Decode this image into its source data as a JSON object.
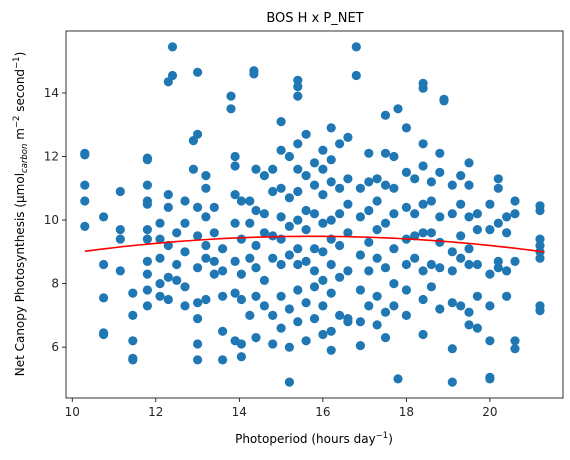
{
  "chart_data": {
    "type": "scatter",
    "title": "BOS H x P_NET",
    "xlabel": {
      "main": "Photoperiod (hours day",
      "sup": "−1",
      "close": ")"
    },
    "ylabel": {
      "p1": "Net Canopy Photosynthesis (μmol",
      "sub": "carbon",
      "p2": " m",
      "sup1": "−2",
      "p3": " second",
      "sup2": "−1",
      "p4": ")"
    },
    "xlim": [
      9.85,
      21.75
    ],
    "ylim": [
      4.4,
      15.95
    ],
    "xticks": [
      10,
      12,
      14,
      16,
      18,
      20
    ],
    "yticks": [
      6,
      8,
      10,
      12,
      14
    ],
    "grid": false,
    "point_color": "#1f77b4",
    "fit_color": "#ff0000",
    "fit": {
      "x_start": 10.3,
      "x_end": 21.3,
      "a": -0.0159,
      "b": 0.5005,
      "c": 5.55
    },
    "points": [
      [
        10.3,
        12.1
      ],
      [
        10.3,
        11.1
      ],
      [
        10.3,
        10.6
      ],
      [
        10.3,
        9.8
      ],
      [
        10.3,
        12.05
      ],
      [
        10.75,
        10.1
      ],
      [
        10.75,
        8.6
      ],
      [
        10.75,
        7.55
      ],
      [
        10.75,
        6.45
      ],
      [
        10.75,
        6.4
      ],
      [
        11.15,
        10.9
      ],
      [
        11.15,
        9.7
      ],
      [
        11.15,
        9.4
      ],
      [
        11.15,
        8.4
      ],
      [
        11.45,
        7.7
      ],
      [
        11.45,
        7.0
      ],
      [
        11.45,
        6.2
      ],
      [
        11.45,
        5.65
      ],
      [
        11.45,
        5.6
      ],
      [
        11.8,
        11.95
      ],
      [
        11.8,
        11.1
      ],
      [
        11.8,
        10.6
      ],
      [
        11.8,
        10.5
      ],
      [
        11.8,
        9.7
      ],
      [
        11.8,
        9.4
      ],
      [
        11.8,
        8.7
      ],
      [
        11.8,
        8.3
      ],
      [
        11.8,
        7.8
      ],
      [
        11.8,
        7.3
      ],
      [
        11.8,
        11.9
      ],
      [
        12.1,
        9.9
      ],
      [
        12.1,
        9.4
      ],
      [
        12.1,
        8.8
      ],
      [
        12.1,
        8.0
      ],
      [
        12.1,
        7.6
      ],
      [
        12.3,
        10.8
      ],
      [
        12.3,
        10.4
      ],
      [
        12.3,
        9.2
      ],
      [
        12.3,
        8.2
      ],
      [
        12.3,
        7.5
      ],
      [
        12.3,
        14.35
      ],
      [
        12.4,
        15.45
      ],
      [
        12.4,
        14.55
      ],
      [
        12.5,
        9.6
      ],
      [
        12.5,
        8.6
      ],
      [
        12.5,
        8.1
      ],
      [
        12.7,
        10.6
      ],
      [
        12.7,
        9.9
      ],
      [
        12.7,
        9.0
      ],
      [
        12.7,
        7.9
      ],
      [
        12.7,
        7.3
      ],
      [
        12.9,
        12.5
      ],
      [
        12.9,
        11.6
      ],
      [
        13.0,
        12.7
      ],
      [
        13.0,
        14.65
      ],
      [
        13.0,
        10.4
      ],
      [
        13.0,
        9.5
      ],
      [
        13.0,
        8.5
      ],
      [
        13.0,
        7.4
      ],
      [
        13.0,
        6.9
      ],
      [
        13.0,
        6.1
      ],
      [
        13.0,
        5.6
      ],
      [
        13.2,
        11.4
      ],
      [
        13.2,
        11.0
      ],
      [
        13.2,
        10.1
      ],
      [
        13.2,
        9.2
      ],
      [
        13.2,
        8.8
      ],
      [
        13.2,
        7.5
      ],
      [
        13.4,
        10.4
      ],
      [
        13.4,
        9.6
      ],
      [
        13.4,
        8.7
      ],
      [
        13.4,
        8.3
      ],
      [
        13.6,
        9.1
      ],
      [
        13.6,
        8.4
      ],
      [
        13.6,
        7.6
      ],
      [
        13.6,
        6.5
      ],
      [
        13.6,
        5.6
      ],
      [
        13.8,
        13.9
      ],
      [
        13.8,
        13.5
      ],
      [
        13.9,
        12.0
      ],
      [
        13.9,
        11.7
      ],
      [
        13.9,
        10.8
      ],
      [
        13.9,
        9.9
      ],
      [
        13.9,
        8.7
      ],
      [
        13.9,
        7.7
      ],
      [
        13.9,
        6.2
      ],
      [
        14.05,
        10.6
      ],
      [
        14.05,
        9.4
      ],
      [
        14.05,
        8.3
      ],
      [
        14.05,
        7.5
      ],
      [
        14.05,
        6.1
      ],
      [
        14.05,
        5.7
      ],
      [
        14.25,
        10.6
      ],
      [
        14.25,
        9.9
      ],
      [
        14.25,
        8.8
      ],
      [
        14.25,
        7.0
      ],
      [
        14.35,
        14.7
      ],
      [
        14.35,
        14.6
      ],
      [
        14.4,
        11.6
      ],
      [
        14.4,
        10.3
      ],
      [
        14.4,
        9.2
      ],
      [
        14.4,
        8.5
      ],
      [
        14.4,
        7.6
      ],
      [
        14.4,
        6.3
      ],
      [
        14.6,
        11.4
      ],
      [
        14.6,
        10.2
      ],
      [
        14.6,
        9.6
      ],
      [
        14.6,
        8.1
      ],
      [
        14.6,
        7.3
      ],
      [
        14.8,
        11.6
      ],
      [
        14.8,
        10.9
      ],
      [
        14.8,
        9.5
      ],
      [
        14.8,
        8.8
      ],
      [
        14.8,
        7.0
      ],
      [
        14.8,
        6.1
      ],
      [
        15.0,
        13.1
      ],
      [
        15.0,
        12.2
      ],
      [
        15.0,
        11.0
      ],
      [
        15.0,
        10.1
      ],
      [
        15.0,
        9.4
      ],
      [
        15.0,
        8.6
      ],
      [
        15.0,
        7.6
      ],
      [
        15.0,
        6.6
      ],
      [
        15.2,
        12.0
      ],
      [
        15.2,
        10.7
      ],
      [
        15.2,
        9.8
      ],
      [
        15.2,
        8.9
      ],
      [
        15.2,
        7.2
      ],
      [
        15.2,
        6.0
      ],
      [
        15.2,
        4.9
      ],
      [
        15.4,
        14.4
      ],
      [
        15.4,
        14.2
      ],
      [
        15.4,
        13.9
      ],
      [
        15.4,
        12.4
      ],
      [
        15.4,
        11.6
      ],
      [
        15.4,
        10.9
      ],
      [
        15.4,
        10.0
      ],
      [
        15.4,
        9.1
      ],
      [
        15.4,
        8.6
      ],
      [
        15.4,
        7.8
      ],
      [
        15.4,
        6.8
      ],
      [
        15.6,
        12.7
      ],
      [
        15.6,
        11.4
      ],
      [
        15.6,
        10.3
      ],
      [
        15.6,
        9.7
      ],
      [
        15.6,
        8.7
      ],
      [
        15.6,
        7.4
      ],
      [
        15.6,
        6.2
      ],
      [
        15.8,
        11.8
      ],
      [
        15.8,
        11.1
      ],
      [
        15.8,
        10.2
      ],
      [
        15.8,
        9.1
      ],
      [
        15.8,
        8.4
      ],
      [
        15.8,
        7.9
      ],
      [
        15.8,
        6.9
      ],
      [
        16.0,
        12.2
      ],
      [
        16.0,
        11.6
      ],
      [
        16.0,
        10.8
      ],
      [
        16.0,
        9.9
      ],
      [
        16.0,
        9.0
      ],
      [
        16.0,
        8.1
      ],
      [
        16.0,
        7.3
      ],
      [
        16.0,
        6.4
      ],
      [
        16.2,
        12.9
      ],
      [
        16.2,
        11.9
      ],
      [
        16.2,
        11.2
      ],
      [
        16.2,
        10.0
      ],
      [
        16.2,
        9.4
      ],
      [
        16.2,
        8.6
      ],
      [
        16.2,
        7.7
      ],
      [
        16.2,
        6.5
      ],
      [
        16.2,
        5.9
      ],
      [
        16.4,
        12.4
      ],
      [
        16.4,
        11.0
      ],
      [
        16.4,
        10.2
      ],
      [
        16.4,
        9.2
      ],
      [
        16.4,
        8.2
      ],
      [
        16.4,
        7.0
      ],
      [
        16.6,
        12.6
      ],
      [
        16.6,
        11.3
      ],
      [
        16.6,
        10.5
      ],
      [
        16.6,
        9.6
      ],
      [
        16.6,
        8.4
      ],
      [
        16.6,
        6.9
      ],
      [
        16.6,
        6.8
      ],
      [
        16.8,
        15.45
      ],
      [
        16.8,
        14.55
      ],
      [
        16.9,
        11.0
      ],
      [
        16.9,
        10.1
      ],
      [
        16.9,
        8.9
      ],
      [
        16.9,
        7.8
      ],
      [
        16.9,
        6.8
      ],
      [
        16.9,
        6.05
      ],
      [
        17.1,
        12.1
      ],
      [
        17.1,
        11.2
      ],
      [
        17.1,
        10.3
      ],
      [
        17.1,
        9.3
      ],
      [
        17.1,
        8.4
      ],
      [
        17.1,
        7.3
      ],
      [
        17.3,
        11.3
      ],
      [
        17.3,
        10.6
      ],
      [
        17.3,
        9.7
      ],
      [
        17.3,
        8.8
      ],
      [
        17.3,
        7.6
      ],
      [
        17.3,
        6.7
      ],
      [
        17.5,
        13.3
      ],
      [
        17.5,
        12.1
      ],
      [
        17.5,
        11.1
      ],
      [
        17.5,
        9.9
      ],
      [
        17.5,
        8.5
      ],
      [
        17.5,
        7.1
      ],
      [
        17.5,
        6.3
      ],
      [
        17.7,
        12.0
      ],
      [
        17.7,
        11.0
      ],
      [
        17.7,
        10.2
      ],
      [
        17.7,
        9.1
      ],
      [
        17.7,
        8.0
      ],
      [
        17.7,
        7.3
      ],
      [
        17.8,
        13.5
      ],
      [
        17.8,
        5.0
      ],
      [
        18.0,
        12.9
      ],
      [
        18.0,
        11.5
      ],
      [
        18.0,
        10.4
      ],
      [
        18.0,
        9.4
      ],
      [
        18.0,
        8.6
      ],
      [
        18.0,
        7.8
      ],
      [
        18.0,
        7.0
      ],
      [
        18.2,
        11.3
      ],
      [
        18.2,
        10.2
      ],
      [
        18.2,
        9.5
      ],
      [
        18.2,
        8.8
      ],
      [
        18.4,
        14.3
      ],
      [
        18.4,
        14.15
      ],
      [
        18.4,
        12.4
      ],
      [
        18.4,
        11.7
      ],
      [
        18.4,
        10.5
      ],
      [
        18.4,
        9.6
      ],
      [
        18.4,
        8.4
      ],
      [
        18.4,
        7.5
      ],
      [
        18.4,
        6.4
      ],
      [
        18.6,
        11.2
      ],
      [
        18.6,
        10.6
      ],
      [
        18.6,
        9.6
      ],
      [
        18.6,
        8.6
      ],
      [
        18.6,
        7.9
      ],
      [
        18.8,
        12.1
      ],
      [
        18.8,
        11.5
      ],
      [
        18.8,
        10.1
      ],
      [
        18.8,
        9.3
      ],
      [
        18.8,
        8.5
      ],
      [
        18.8,
        7.2
      ],
      [
        18.9,
        13.8
      ],
      [
        18.9,
        13.75
      ],
      [
        19.1,
        11.1
      ],
      [
        19.1,
        10.2
      ],
      [
        19.1,
        9.0
      ],
      [
        19.1,
        8.4
      ],
      [
        19.1,
        7.4
      ],
      [
        19.1,
        5.95
      ],
      [
        19.1,
        4.9
      ],
      [
        19.3,
        11.4
      ],
      [
        19.3,
        10.5
      ],
      [
        19.3,
        9.5
      ],
      [
        19.3,
        8.8
      ],
      [
        19.3,
        7.3
      ],
      [
        19.5,
        11.8
      ],
      [
        19.5,
        11.1
      ],
      [
        19.5,
        10.1
      ],
      [
        19.5,
        9.1
      ],
      [
        19.5,
        8.6
      ],
      [
        19.5,
        7.1
      ],
      [
        19.5,
        6.7
      ],
      [
        19.7,
        10.2
      ],
      [
        19.7,
        9.7
      ],
      [
        19.7,
        8.6
      ],
      [
        19.7,
        7.6
      ],
      [
        19.7,
        6.6
      ],
      [
        20.0,
        10.5
      ],
      [
        20.0,
        9.7
      ],
      [
        20.0,
        8.3
      ],
      [
        20.0,
        7.3
      ],
      [
        20.0,
        6.2
      ],
      [
        20.0,
        5.05
      ],
      [
        20.0,
        5.0
      ],
      [
        20.2,
        11.3
      ],
      [
        20.2,
        11.0
      ],
      [
        20.2,
        9.9
      ],
      [
        20.2,
        8.7
      ],
      [
        20.2,
        8.5
      ],
      [
        20.4,
        10.1
      ],
      [
        20.4,
        9.6
      ],
      [
        20.4,
        8.4
      ],
      [
        20.4,
        7.6
      ],
      [
        20.6,
        10.6
      ],
      [
        20.6,
        10.2
      ],
      [
        20.6,
        8.7
      ],
      [
        20.6,
        6.2
      ],
      [
        20.6,
        5.95
      ],
      [
        21.2,
        10.45
      ],
      [
        21.2,
        10.3
      ],
      [
        21.2,
        9.4
      ],
      [
        21.2,
        9.2
      ],
      [
        21.2,
        9.0
      ],
      [
        21.2,
        8.8
      ],
      [
        21.2,
        7.3
      ],
      [
        21.2,
        7.15
      ]
    ]
  }
}
